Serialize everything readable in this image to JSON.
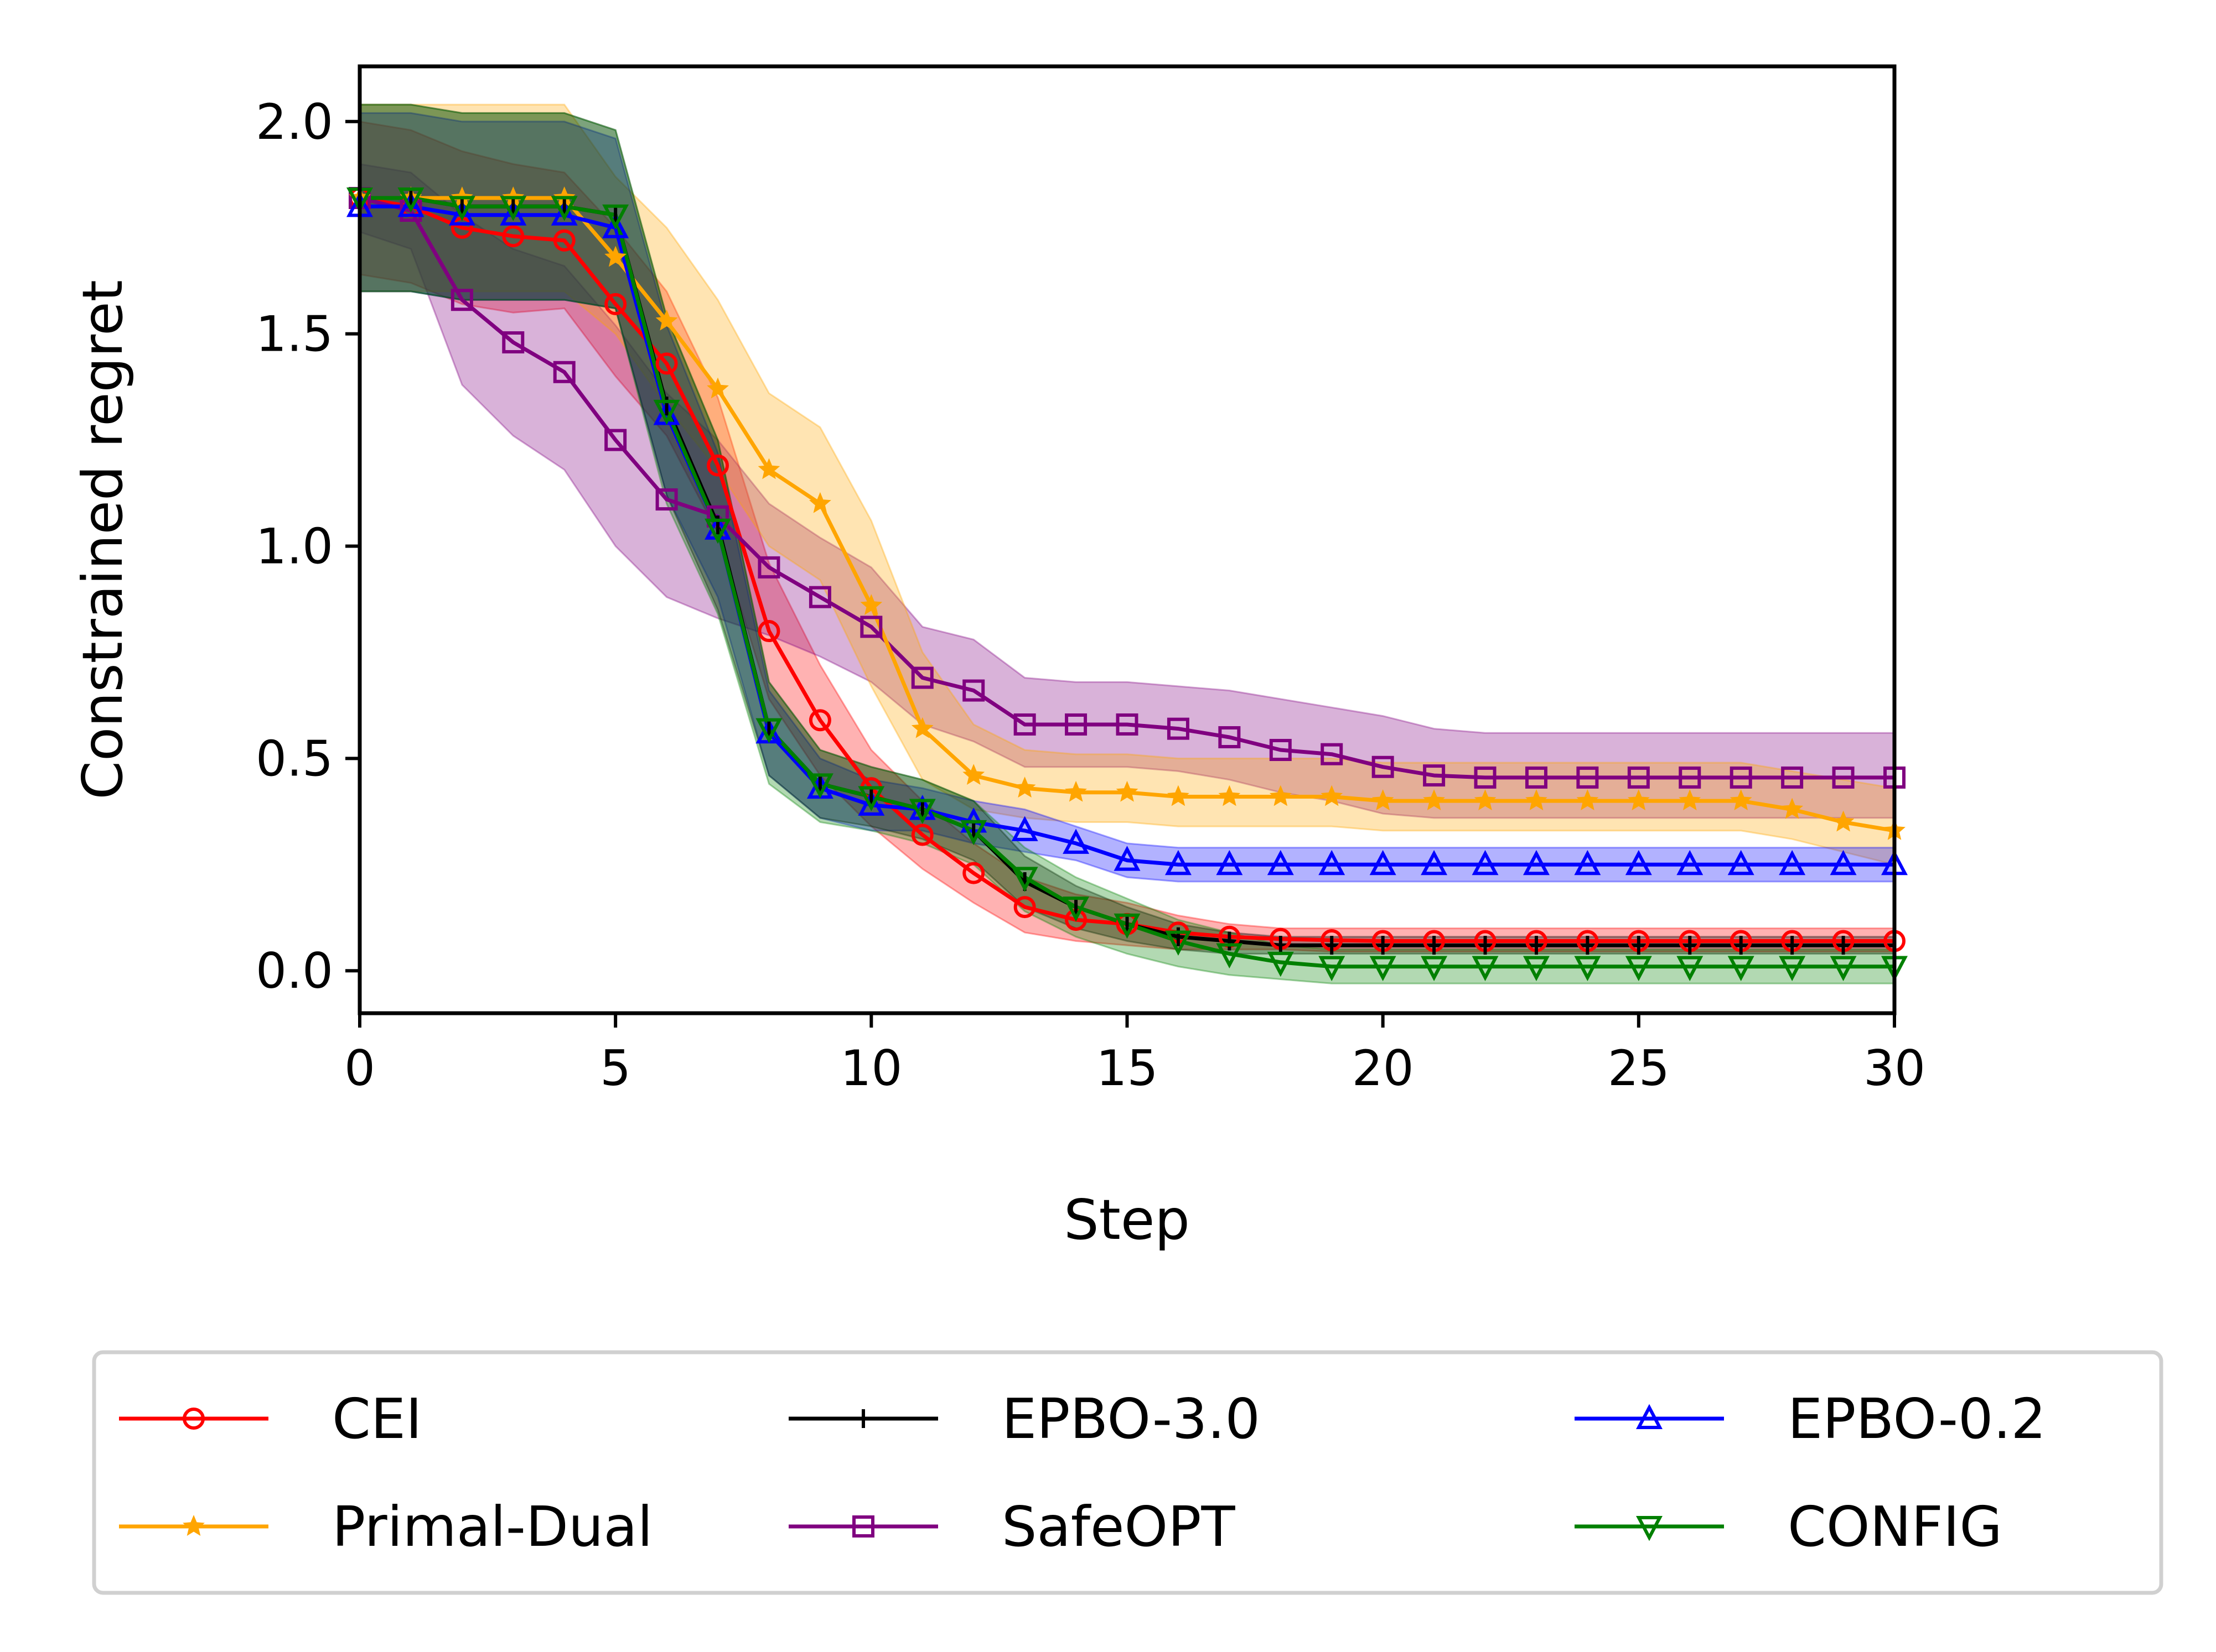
{
  "chart_data": {
    "type": "line",
    "title": "",
    "xlabel": "Step",
    "ylabel": "Constrained regret",
    "xlim": [
      0,
      30
    ],
    "ylim": [
      -0.1,
      2.13
    ],
    "xticks": [
      "0",
      "5",
      "10",
      "15",
      "20",
      "25",
      "30"
    ],
    "yticks": [
      "0.0",
      "0.5",
      "1.0",
      "1.5",
      "2.0"
    ],
    "grid": false,
    "legend_position": "below plot, 3 columns",
    "x": [
      0,
      1,
      2,
      3,
      4,
      5,
      6,
      7,
      8,
      9,
      10,
      11,
      12,
      13,
      14,
      15,
      16,
      17,
      18,
      19,
      20,
      21,
      22,
      23,
      24,
      25,
      26,
      27,
      28,
      29,
      30
    ],
    "series": [
      {
        "name": "CEI",
        "color": "#ff0000",
        "marker": "circle",
        "values": [
          1.82,
          1.8,
          1.75,
          1.73,
          1.72,
          1.57,
          1.43,
          1.19,
          0.8,
          0.59,
          0.43,
          0.32,
          0.23,
          0.15,
          0.12,
          0.11,
          0.09,
          0.08,
          0.075,
          0.072,
          0.07,
          0.07,
          0.07,
          0.07,
          0.07,
          0.07,
          0.07,
          0.07,
          0.07,
          0.07,
          0.07
        ],
        "upper": [
          2.0,
          1.98,
          1.93,
          1.9,
          1.88,
          1.75,
          1.6,
          1.35,
          0.96,
          0.72,
          0.52,
          0.4,
          0.3,
          0.22,
          0.18,
          0.16,
          0.13,
          0.11,
          0.1,
          0.1,
          0.1,
          0.1,
          0.1,
          0.1,
          0.1,
          0.1,
          0.1,
          0.1,
          0.1,
          0.1,
          0.1
        ],
        "lower": [
          1.64,
          1.62,
          1.57,
          1.55,
          1.56,
          1.4,
          1.26,
          1.03,
          0.64,
          0.46,
          0.34,
          0.24,
          0.16,
          0.09,
          0.07,
          0.06,
          0.05,
          0.05,
          0.05,
          0.045,
          0.045,
          0.045,
          0.045,
          0.045,
          0.045,
          0.045,
          0.045,
          0.045,
          0.045,
          0.045,
          0.045
        ]
      },
      {
        "name": "SafeOPT",
        "color": "#800080",
        "marker": "square",
        "values": [
          1.82,
          1.79,
          1.58,
          1.48,
          1.41,
          1.25,
          1.11,
          1.07,
          0.95,
          0.88,
          0.81,
          0.69,
          0.66,
          0.58,
          0.58,
          0.58,
          0.57,
          0.55,
          0.52,
          0.51,
          0.48,
          0.46,
          0.455,
          0.455,
          0.455,
          0.455,
          0.455,
          0.455,
          0.455,
          0.455,
          0.455
        ],
        "upper": [
          1.9,
          1.88,
          1.78,
          1.7,
          1.66,
          1.52,
          1.36,
          1.25,
          1.1,
          1.02,
          0.95,
          0.81,
          0.78,
          0.69,
          0.68,
          0.68,
          0.67,
          0.66,
          0.64,
          0.62,
          0.6,
          0.57,
          0.56,
          0.56,
          0.56,
          0.56,
          0.56,
          0.56,
          0.56,
          0.56,
          0.56
        ],
        "lower": [
          1.74,
          1.7,
          1.38,
          1.26,
          1.18,
          1.0,
          0.88,
          0.83,
          0.79,
          0.74,
          0.68,
          0.58,
          0.54,
          0.48,
          0.48,
          0.48,
          0.47,
          0.45,
          0.42,
          0.4,
          0.37,
          0.36,
          0.36,
          0.36,
          0.36,
          0.36,
          0.36,
          0.36,
          0.36,
          0.36,
          0.36
        ]
      },
      {
        "name": "Primal-Dual",
        "color": "#ffa500",
        "marker": "star",
        "values": [
          1.82,
          1.82,
          1.82,
          1.82,
          1.82,
          1.68,
          1.53,
          1.37,
          1.18,
          1.1,
          0.86,
          0.57,
          0.46,
          0.43,
          0.42,
          0.42,
          0.41,
          0.41,
          0.41,
          0.41,
          0.4,
          0.4,
          0.4,
          0.4,
          0.4,
          0.4,
          0.4,
          0.4,
          0.38,
          0.35,
          0.33
        ],
        "upper": [
          2.04,
          2.04,
          2.04,
          2.04,
          2.04,
          1.87,
          1.75,
          1.58,
          1.36,
          1.28,
          1.06,
          0.75,
          0.58,
          0.52,
          0.51,
          0.51,
          0.5,
          0.5,
          0.5,
          0.5,
          0.49,
          0.49,
          0.49,
          0.49,
          0.49,
          0.49,
          0.49,
          0.49,
          0.47,
          0.45,
          0.43
        ],
        "lower": [
          1.6,
          1.6,
          1.6,
          1.6,
          1.6,
          1.5,
          1.33,
          1.18,
          1.0,
          0.92,
          0.67,
          0.45,
          0.38,
          0.36,
          0.35,
          0.35,
          0.34,
          0.34,
          0.34,
          0.34,
          0.33,
          0.33,
          0.33,
          0.33,
          0.33,
          0.33,
          0.33,
          0.33,
          0.31,
          0.28,
          0.25
        ]
      },
      {
        "name": "EPBO-0.2",
        "color": "#0000ff",
        "marker": "triangle-up",
        "values": [
          1.8,
          1.8,
          1.78,
          1.78,
          1.78,
          1.75,
          1.31,
          1.04,
          0.56,
          0.43,
          0.39,
          0.38,
          0.35,
          0.33,
          0.3,
          0.26,
          0.25,
          0.25,
          0.25,
          0.25,
          0.25,
          0.25,
          0.25,
          0.25,
          0.25,
          0.25,
          0.25,
          0.25,
          0.25,
          0.25,
          0.25
        ],
        "upper": [
          2.02,
          2.02,
          2.0,
          2.0,
          2.0,
          1.96,
          1.52,
          1.22,
          0.66,
          0.5,
          0.45,
          0.43,
          0.4,
          0.38,
          0.34,
          0.3,
          0.29,
          0.29,
          0.29,
          0.29,
          0.29,
          0.29,
          0.29,
          0.29,
          0.29,
          0.29,
          0.29,
          0.29,
          0.29,
          0.29,
          0.29
        ],
        "lower": [
          1.6,
          1.6,
          1.58,
          1.58,
          1.58,
          1.56,
          1.12,
          0.88,
          0.46,
          0.36,
          0.33,
          0.33,
          0.3,
          0.28,
          0.26,
          0.22,
          0.21,
          0.21,
          0.21,
          0.21,
          0.21,
          0.21,
          0.21,
          0.21,
          0.21,
          0.21,
          0.21,
          0.21,
          0.21,
          0.21,
          0.21
        ]
      },
      {
        "name": "EPBO-3.0",
        "color": "#000000",
        "marker": "vline",
        "values": [
          1.82,
          1.82,
          1.8,
          1.8,
          1.8,
          1.78,
          1.33,
          1.05,
          0.57,
          0.44,
          0.41,
          0.38,
          0.33,
          0.21,
          0.15,
          0.11,
          0.08,
          0.07,
          0.06,
          0.06,
          0.06,
          0.06,
          0.06,
          0.06,
          0.06,
          0.06,
          0.06,
          0.06,
          0.06,
          0.06,
          0.06
        ],
        "upper": [
          2.04,
          2.04,
          2.02,
          2.02,
          2.02,
          1.98,
          1.54,
          1.25,
          0.68,
          0.52,
          0.48,
          0.45,
          0.4,
          0.27,
          0.2,
          0.15,
          0.11,
          0.09,
          0.08,
          0.08,
          0.08,
          0.08,
          0.08,
          0.08,
          0.08,
          0.08,
          0.08,
          0.08,
          0.08,
          0.08,
          0.08
        ],
        "lower": [
          1.6,
          1.6,
          1.58,
          1.58,
          1.58,
          1.56,
          1.12,
          0.85,
          0.46,
          0.36,
          0.34,
          0.31,
          0.26,
          0.15,
          0.1,
          0.07,
          0.05,
          0.04,
          0.04,
          0.04,
          0.04,
          0.04,
          0.04,
          0.04,
          0.04,
          0.04,
          0.04,
          0.04,
          0.04,
          0.04,
          0.04
        ]
      },
      {
        "name": "CONFIG",
        "color": "#008000",
        "marker": "triangle-down",
        "values": [
          1.82,
          1.82,
          1.8,
          1.8,
          1.8,
          1.78,
          1.32,
          1.04,
          0.57,
          0.44,
          0.41,
          0.38,
          0.33,
          0.22,
          0.15,
          0.11,
          0.07,
          0.04,
          0.02,
          0.01,
          0.01,
          0.01,
          0.01,
          0.01,
          0.01,
          0.01,
          0.01,
          0.01,
          0.01,
          0.01,
          0.01
        ],
        "upper": [
          2.04,
          2.04,
          2.02,
          2.02,
          2.02,
          1.98,
          1.54,
          1.25,
          0.68,
          0.52,
          0.48,
          0.45,
          0.4,
          0.29,
          0.22,
          0.17,
          0.12,
          0.09,
          0.06,
          0.05,
          0.05,
          0.05,
          0.05,
          0.05,
          0.05,
          0.05,
          0.05,
          0.05,
          0.05,
          0.05,
          0.05
        ],
        "lower": [
          1.6,
          1.6,
          1.58,
          1.58,
          1.58,
          1.56,
          1.1,
          0.84,
          0.44,
          0.35,
          0.33,
          0.3,
          0.25,
          0.14,
          0.08,
          0.04,
          0.01,
          -0.01,
          -0.02,
          -0.03,
          -0.03,
          -0.03,
          -0.03,
          -0.03,
          -0.03,
          -0.03,
          -0.03,
          -0.03,
          -0.03,
          -0.03,
          -0.03
        ]
      }
    ],
    "legend_order": [
      "CEI",
      "Primal-Dual",
      "EPBO-3.0",
      "SafeOPT",
      "EPBO-0.2",
      "CONFIG"
    ]
  }
}
